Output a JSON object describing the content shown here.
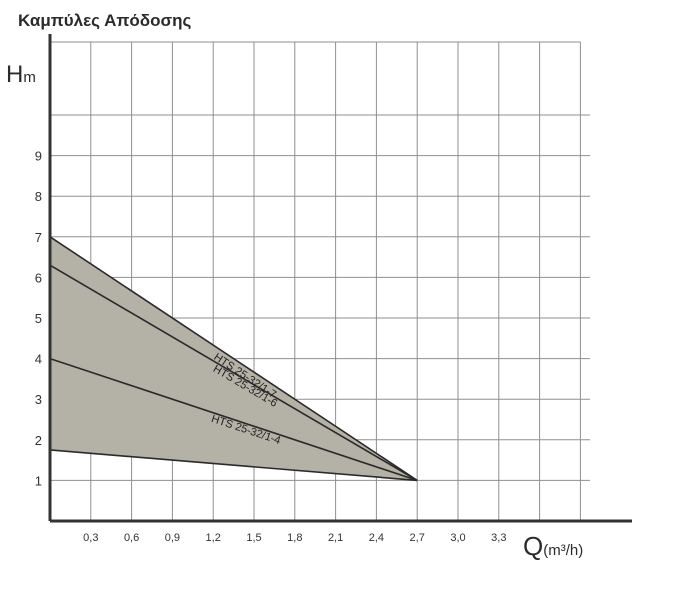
{
  "title": "Καμπύλες Απόδοσης",
  "chart_data": {
    "type": "line",
    "title": "Καμπύλες Απόδοσης",
    "ylabel_main": "H",
    "ylabel_sub": "m",
    "xlabel_main": "Q",
    "xlabel_unit": "(m³/h)",
    "xlim": [
      0,
      3.6
    ],
    "ylim": [
      0,
      10
    ],
    "x_ticks": [
      "0,3",
      "0,6",
      "0,9",
      "1,2",
      "1,5",
      "1,8",
      "2,1",
      "2,4",
      "2,7",
      "3,0",
      "3,3"
    ],
    "y_ticks": [
      "1",
      "2",
      "3",
      "4",
      "5",
      "6",
      "7",
      "8",
      "9"
    ],
    "grid": true,
    "series": [
      {
        "name": "HTS 25-32/1-7",
        "points": [
          [
            0,
            7.0
          ],
          [
            2.7,
            1.0
          ]
        ]
      },
      {
        "name": "HTS 25-32/1-6",
        "points": [
          [
            0,
            6.3
          ],
          [
            2.7,
            1.0
          ]
        ]
      },
      {
        "name": "HTS 25-32/1-4",
        "points": [
          [
            0,
            4.0
          ],
          [
            2.7,
            1.0
          ]
        ]
      },
      {
        "name": "",
        "points": [
          [
            0,
            1.75
          ],
          [
            2.7,
            1.0
          ]
        ]
      }
    ],
    "shaded_region": {
      "color": "#b4b1a6",
      "upper": "HTS 25-32/1-7",
      "lower_y": [
        1.75,
        1.0
      ]
    }
  },
  "colors": {
    "grid": "#8f8f8f",
    "axis": "#333333",
    "curve": "#2a2a2a",
    "fill": "#b4b1a6"
  }
}
